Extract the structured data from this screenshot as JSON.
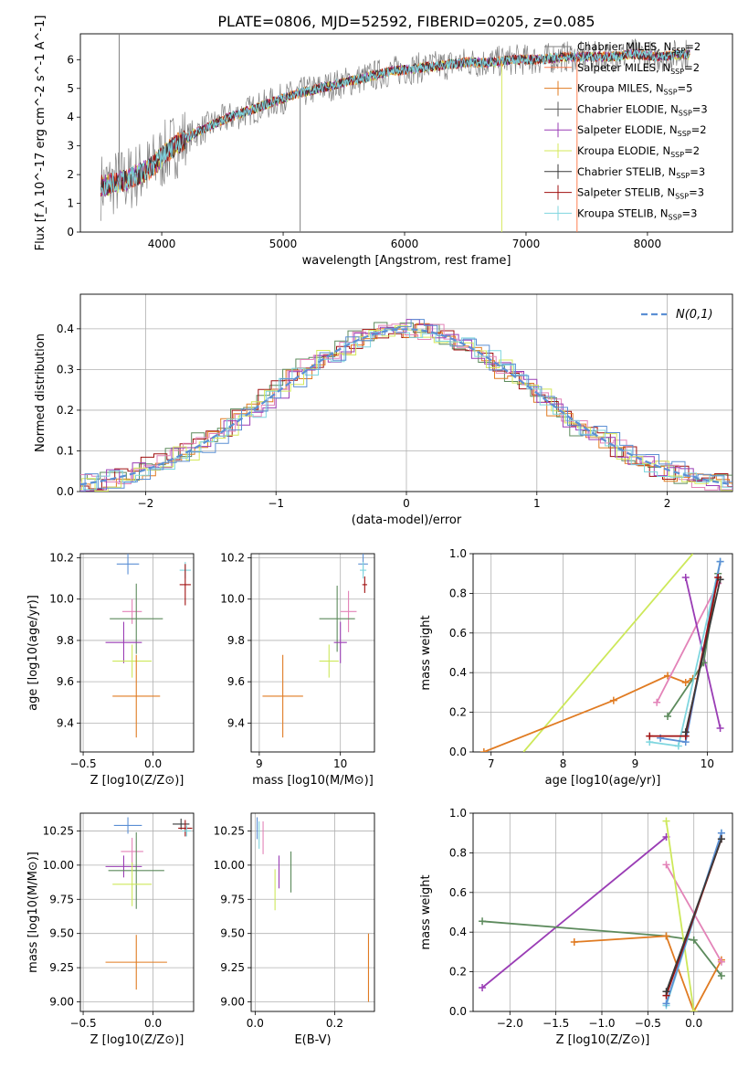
{
  "figure_title": "PLATE=0806, MJD=52592, FIBERID=0205, z=0.085",
  "colors": {
    "cm": "#808080",
    "sm": "#ff7f50",
    "km": "#e07b22",
    "ce": "#5a5a5a",
    "se": "#9a3db5",
    "ke": "#d4e85a",
    "cs": "#3a3a3a",
    "ss": "#a01010",
    "ks": "#7fd6df",
    "blue": "#5b8fd4",
    "green": "#5c8a5c",
    "pink": "#e383b8",
    "lime": "#cde85a",
    "purple": "#9a3db5"
  },
  "chart_data": [
    {
      "id": "spectrum",
      "type": "line",
      "title": "PLATE=0806, MJD=52592, FIBERID=0205, z=0.085",
      "xlabel": "wavelength [Angstrom, rest frame]",
      "ylabel": "Flux [f_λ 10^-17 erg cm^-2 s^-1 A^-1]",
      "xlim": [
        3330,
        8700
      ],
      "ylim": [
        0,
        6.9
      ],
      "xticks": [
        4000,
        5000,
        6000,
        7000,
        8000
      ],
      "yticks": [
        0,
        1,
        2,
        3,
        4,
        5,
        6
      ],
      "grid": false,
      "legend_position": "top-right",
      "spectrum_x": [
        3500,
        3700,
        3900,
        4100,
        4300,
        4500,
        4700,
        4900,
        5100,
        5300,
        5500,
        5700,
        5900,
        6100,
        6300,
        6500,
        6700,
        6900,
        7100,
        7300,
        7500,
        7700,
        7900,
        8100,
        8300
      ],
      "spectrum_y": [
        1.6,
        1.8,
        2.2,
        3.0,
        3.5,
        3.9,
        4.2,
        4.5,
        4.8,
        5.0,
        5.2,
        5.4,
        5.6,
        5.7,
        5.8,
        5.9,
        5.9,
        6.0,
        6.0,
        6.1,
        6.1,
        6.1,
        6.2,
        6.1,
        6.2
      ],
      "spikes": [
        {
          "x": 3650,
          "y": 6.9
        },
        {
          "x": 5140,
          "y": 0.0
        },
        {
          "x": 6800,
          "y": 0.0
        },
        {
          "x": 7420,
          "y": 0.0
        }
      ],
      "series": [
        {
          "name": "Chabrier MILES, N_SSP=2",
          "name_main": "Chabrier MILES, N",
          "name_sub": "SSP",
          "name_tail": "=2",
          "color": "#808080",
          "marker": "line"
        },
        {
          "name": "Salpeter MILES, N_SSP=2",
          "name_main": "Salpeter MILES, N",
          "name_sub": "SSP",
          "name_tail": "=2",
          "color": "#ff7f50",
          "marker": "line"
        },
        {
          "name": "Kroupa MILES, N_SSP=5",
          "name_main": "Kroupa MILES, N",
          "name_sub": "SSP",
          "name_tail": "=5",
          "color": "#e07b22",
          "marker": "cross"
        },
        {
          "name": "Chabrier ELODIE, N_SSP=3",
          "name_main": "Chabrier ELODIE, N",
          "name_sub": "SSP",
          "name_tail": "=3",
          "color": "#5a5a5a",
          "marker": "cross"
        },
        {
          "name": "Salpeter ELODIE, N_SSP=2",
          "name_main": "Salpeter ELODIE, N",
          "name_sub": "SSP",
          "name_tail": "=2",
          "color": "#9a3db5",
          "marker": "cross"
        },
        {
          "name": "Kroupa ELODIE, N_SSP=2",
          "name_main": "Kroupa ELODIE, N",
          "name_sub": "SSP",
          "name_tail": "=2",
          "color": "#d4e85a",
          "marker": "cross"
        },
        {
          "name": "Chabrier STELIB, N_SSP=3",
          "name_main": "Chabrier STELIB, N",
          "name_sub": "SSP",
          "name_tail": "=3",
          "color": "#3a3a3a",
          "marker": "cross"
        },
        {
          "name": "Salpeter STELIB, N_SSP=3",
          "name_main": "Salpeter STELIB, N",
          "name_sub": "SSP",
          "name_tail": "=3",
          "color": "#a01010",
          "marker": "cross"
        },
        {
          "name": "Kroupa STELIB, N_SSP=3",
          "name_main": "Kroupa STELIB, N",
          "name_sub": "SSP",
          "name_tail": "=3",
          "color": "#7fd6df",
          "marker": "cross"
        }
      ]
    },
    {
      "id": "residuals",
      "type": "line",
      "xlabel": "(data-model)/error",
      "ylabel": "Normed distribution",
      "xlim": [
        -2.5,
        2.5
      ],
      "ylim": [
        0,
        0.485
      ],
      "xticks": [
        -2,
        -1,
        0,
        1,
        2
      ],
      "yticks": [
        0.0,
        0.1,
        0.2,
        0.3,
        0.4
      ],
      "grid": true,
      "legend_position": "top-right",
      "legend_label": "N(0,1)",
      "gaussian": {
        "mean": 0,
        "sigma": 1,
        "color": "#5b8fd4"
      },
      "histogram_colors": [
        "#5c8a5c",
        "#a01010",
        "#e07b22",
        "#e383b8",
        "#9a3db5",
        "#d4e85a",
        "#7fd6df",
        "#5b8fd4"
      ]
    },
    {
      "id": "age_vs_Z",
      "type": "scatter",
      "xlabel": "Z [log10(Z/Z⊙)]",
      "ylabel": "age [log10(age/yr)]",
      "xlim": [
        -0.52,
        0.29
      ],
      "ylim": [
        9.26,
        10.22
      ],
      "xticks": [
        -0.5,
        0.0
      ],
      "yticks": [
        9.4,
        9.6,
        9.8,
        10.0,
        10.2
      ],
      "grid": true,
      "points": [
        {
          "x": -0.18,
          "y": 10.17,
          "xerr": 0.08,
          "yerr": 0.05,
          "color": "#5b8fd4"
        },
        {
          "x": 0.23,
          "y": 10.14,
          "xerr": 0.04,
          "yerr": 0.04,
          "color": "#7fd6df"
        },
        {
          "x": 0.23,
          "y": 10.07,
          "xerr": 0.04,
          "yerr": 0.1,
          "color": "#a01010"
        },
        {
          "x": -0.15,
          "y": 9.94,
          "xerr": 0.07,
          "yerr": 0.06,
          "color": "#e383b8"
        },
        {
          "x": -0.12,
          "y": 9.905,
          "xerr": 0.19,
          "yerr": 0.17,
          "color": "#5c8a5c"
        },
        {
          "x": -0.21,
          "y": 9.79,
          "xerr": 0.13,
          "yerr": 0.1,
          "color": "#9a3db5"
        },
        {
          "x": -0.15,
          "y": 9.7,
          "xerr": 0.14,
          "yerr": 0.08,
          "color": "#cde85a"
        },
        {
          "x": -0.12,
          "y": 9.53,
          "xerr": 0.17,
          "yerr": 0.2,
          "color": "#e07b22"
        }
      ]
    },
    {
      "id": "age_vs_mass",
      "type": "scatter",
      "xlabel": "mass [log10(M/M⊙)]",
      "ylabel": "",
      "xlim": [
        8.9,
        10.42
      ],
      "ylim": [
        9.26,
        10.22
      ],
      "xticks": [
        9,
        10
      ],
      "yticks": [
        9.4,
        9.6,
        9.8,
        10.0,
        10.2
      ],
      "grid": true,
      "points": [
        {
          "x": 10.28,
          "y": 10.17,
          "xerr": 0.06,
          "yerr": 0.05,
          "color": "#5b8fd4"
        },
        {
          "x": 10.28,
          "y": 10.14,
          "xerr": 0.04,
          "yerr": 0.04,
          "color": "#7fd6df"
        },
        {
          "x": 10.3,
          "y": 10.07,
          "xerr": 0.03,
          "yerr": 0.04,
          "color": "#a01010"
        },
        {
          "x": 10.1,
          "y": 9.94,
          "xerr": 0.1,
          "yerr": 0.1,
          "color": "#e383b8"
        },
        {
          "x": 9.96,
          "y": 9.905,
          "xerr": 0.22,
          "yerr": 0.16,
          "color": "#5c8a5c"
        },
        {
          "x": 10.0,
          "y": 9.79,
          "xerr": 0.08,
          "yerr": 0.1,
          "color": "#9a3db5"
        },
        {
          "x": 9.86,
          "y": 9.7,
          "xerr": 0.12,
          "yerr": 0.08,
          "color": "#cde85a"
        },
        {
          "x": 9.29,
          "y": 9.53,
          "xerr": 0.25,
          "yerr": 0.2,
          "color": "#e07b22"
        }
      ]
    },
    {
      "id": "weight_vs_age",
      "type": "line",
      "xlabel": "age [log10(age/yr)]",
      "ylabel": "mass weight",
      "xlim": [
        6.75,
        10.35
      ],
      "ylim": [
        0,
        1
      ],
      "xticks": [
        7,
        8,
        9,
        10
      ],
      "yticks": [
        0.0,
        0.2,
        0.4,
        0.6,
        0.8,
        1.0
      ],
      "grid": true,
      "series": [
        {
          "color": "#cde85a",
          "points": [
            [
              7.45,
              0
            ],
            [
              9.8,
              1.0
            ]
          ],
          "markers": false
        },
        {
          "color": "#e07b22",
          "points": [
            [
              6.9,
              0
            ],
            [
              8.7,
              0.26
            ],
            [
              9.45,
              0.385
            ],
            [
              9.7,
              0.35
            ],
            [
              9.8,
              0.37
            ]
          ],
          "markers": true
        },
        {
          "color": "#e383b8",
          "points": [
            [
              9.3,
              0.25
            ],
            [
              10.15,
              0.85
            ]
          ],
          "markers": true
        },
        {
          "color": "#9a3db5",
          "points": [
            [
              9.7,
              0.88
            ],
            [
              10.18,
              0.12
            ]
          ],
          "markers": true
        },
        {
          "color": "#5c8a5c",
          "points": [
            [
              9.45,
              0.18
            ],
            [
              9.95,
              0.45
            ],
            [
              10.15,
              0.9
            ]
          ],
          "markers": true
        },
        {
          "color": "#7fd6df",
          "points": [
            [
              9.2,
              0.05
            ],
            [
              9.6,
              0.03
            ],
            [
              10.18,
              0.96
            ]
          ],
          "markers": true
        },
        {
          "color": "#5b8fd4",
          "points": [
            [
              9.35,
              0.07
            ],
            [
              9.7,
              0.05
            ],
            [
              10.18,
              0.96
            ]
          ],
          "markers": true
        },
        {
          "color": "#a01010",
          "points": [
            [
              9.2,
              0.08
            ],
            [
              9.7,
              0.08
            ],
            [
              10.15,
              0.88
            ]
          ],
          "markers": true
        },
        {
          "color": "#3a3a3a",
          "points": [
            [
              9.7,
              0.1
            ],
            [
              10.18,
              0.87
            ]
          ],
          "markers": true
        }
      ]
    },
    {
      "id": "mass_vs_Z",
      "type": "scatter",
      "xlabel": "Z [log10(Z/Z⊙)]",
      "ylabel": "mass [log10(M/M⊙)]",
      "xlim": [
        -0.52,
        0.29
      ],
      "ylim": [
        8.93,
        10.38
      ],
      "xticks": [
        -0.5,
        0.0
      ],
      "yticks": [
        9.0,
        9.25,
        9.5,
        9.75,
        10.0,
        10.25
      ],
      "grid": true,
      "points": [
        {
          "x": 0.2,
          "y": 10.3,
          "xerr": 0.06,
          "yerr": 0.04,
          "color": "#3a3a3a"
        },
        {
          "x": 0.23,
          "y": 10.27,
          "xerr": 0.05,
          "yerr": 0.06,
          "color": "#a01010"
        },
        {
          "x": 0.24,
          "y": 10.25,
          "xerr": 0.03,
          "yerr": 0.04,
          "color": "#7fd6df"
        },
        {
          "x": -0.18,
          "y": 10.29,
          "xerr": 0.1,
          "yerr": 0.06,
          "color": "#5b8fd4"
        },
        {
          "x": -0.15,
          "y": 10.1,
          "xerr": 0.08,
          "yerr": 0.1,
          "color": "#e383b8"
        },
        {
          "x": -0.21,
          "y": 9.99,
          "xerr": 0.13,
          "yerr": 0.08,
          "color": "#9a3db5"
        },
        {
          "x": -0.12,
          "y": 9.96,
          "xerr": 0.2,
          "yerr": 0.28,
          "color": "#5c8a5c"
        },
        {
          "x": -0.15,
          "y": 9.86,
          "xerr": 0.14,
          "yerr": 0.16,
          "color": "#cde85a"
        },
        {
          "x": -0.12,
          "y": 9.29,
          "xerr": 0.22,
          "yerr": 0.2,
          "color": "#e07b22"
        }
      ]
    },
    {
      "id": "mass_vs_ebv",
      "type": "scatter",
      "xlabel": "E(B-V)",
      "ylabel": "",
      "xlim": [
        -0.01,
        0.3
      ],
      "ylim": [
        8.93,
        10.38
      ],
      "xticks": [
        0.0,
        0.2
      ],
      "yticks": [
        9.0,
        9.25,
        9.5,
        9.75,
        10.0,
        10.25
      ],
      "grid": true,
      "points": [
        {
          "x": 0.005,
          "y": 10.27,
          "xerr": 0,
          "yerr": 0.08,
          "color": "#5b8fd4"
        },
        {
          "x": 0.01,
          "y": 10.22,
          "xerr": 0,
          "yerr": 0.1,
          "color": "#7fd6df"
        },
        {
          "x": 0.02,
          "y": 10.2,
          "xerr": 0,
          "yerr": 0.12,
          "color": "#e383b8"
        },
        {
          "x": 0.06,
          "y": 9.95,
          "xerr": 0,
          "yerr": 0.12,
          "color": "#9a3db5"
        },
        {
          "x": 0.09,
          "y": 9.95,
          "xerr": 0,
          "yerr": 0.15,
          "color": "#5c8a5c"
        },
        {
          "x": 0.05,
          "y": 9.82,
          "xerr": 0,
          "yerr": 0.15,
          "color": "#cde85a"
        },
        {
          "x": 0.285,
          "y": 9.25,
          "xerr": 0,
          "yerr": 0.25,
          "color": "#e07b22"
        }
      ]
    },
    {
      "id": "weight_vs_Z",
      "type": "line",
      "xlabel": "Z [log10(Z/Z⊙)]",
      "ylabel": "mass weight",
      "xlim": [
        -2.4,
        0.42
      ],
      "ylim": [
        0,
        1
      ],
      "xticks": [
        -2.0,
        -1.5,
        -1.0,
        -0.5,
        0.0
      ],
      "yticks": [
        0.0,
        0.2,
        0.4,
        0.6,
        0.8,
        1.0
      ],
      "grid": true,
      "series": [
        {
          "color": "#9a3db5",
          "points": [
            [
              -2.3,
              0.12
            ],
            [
              -0.3,
              0.88
            ]
          ],
          "markers": true
        },
        {
          "color": "#5c8a5c",
          "points": [
            [
              -2.3,
              0.455
            ],
            [
              -0.3,
              0.38
            ],
            [
              0.0,
              0.36
            ],
            [
              0.3,
              0.18
            ]
          ],
          "markers": true
        },
        {
          "color": "#e07b22",
          "points": [
            [
              -1.3,
              0.35
            ],
            [
              -0.3,
              0.38
            ],
            [
              0.0,
              0.0
            ],
            [
              0.3,
              0.26
            ]
          ],
          "markers": true
        },
        {
          "color": "#e383b8",
          "points": [
            [
              -0.3,
              0.74
            ],
            [
              0.3,
              0.25
            ]
          ],
          "markers": true
        },
        {
          "color": "#cde85a",
          "points": [
            [
              -0.3,
              0.96
            ],
            [
              0.0,
              0.0
            ]
          ],
          "markers": true
        },
        {
          "color": "#7fd6df",
          "points": [
            [
              -0.3,
              0.03
            ],
            [
              0.3,
              0.9
            ]
          ],
          "markers": true
        },
        {
          "color": "#5b8fd4",
          "points": [
            [
              -0.3,
              0.04
            ],
            [
              0.3,
              0.9
            ]
          ],
          "markers": true
        },
        {
          "color": "#a01010",
          "points": [
            [
              -0.3,
              0.08
            ],
            [
              0.3,
              0.87
            ]
          ],
          "markers": true
        },
        {
          "color": "#3a3a3a",
          "points": [
            [
              -0.3,
              0.1
            ],
            [
              0.3,
              0.87
            ]
          ],
          "markers": true
        }
      ]
    }
  ]
}
